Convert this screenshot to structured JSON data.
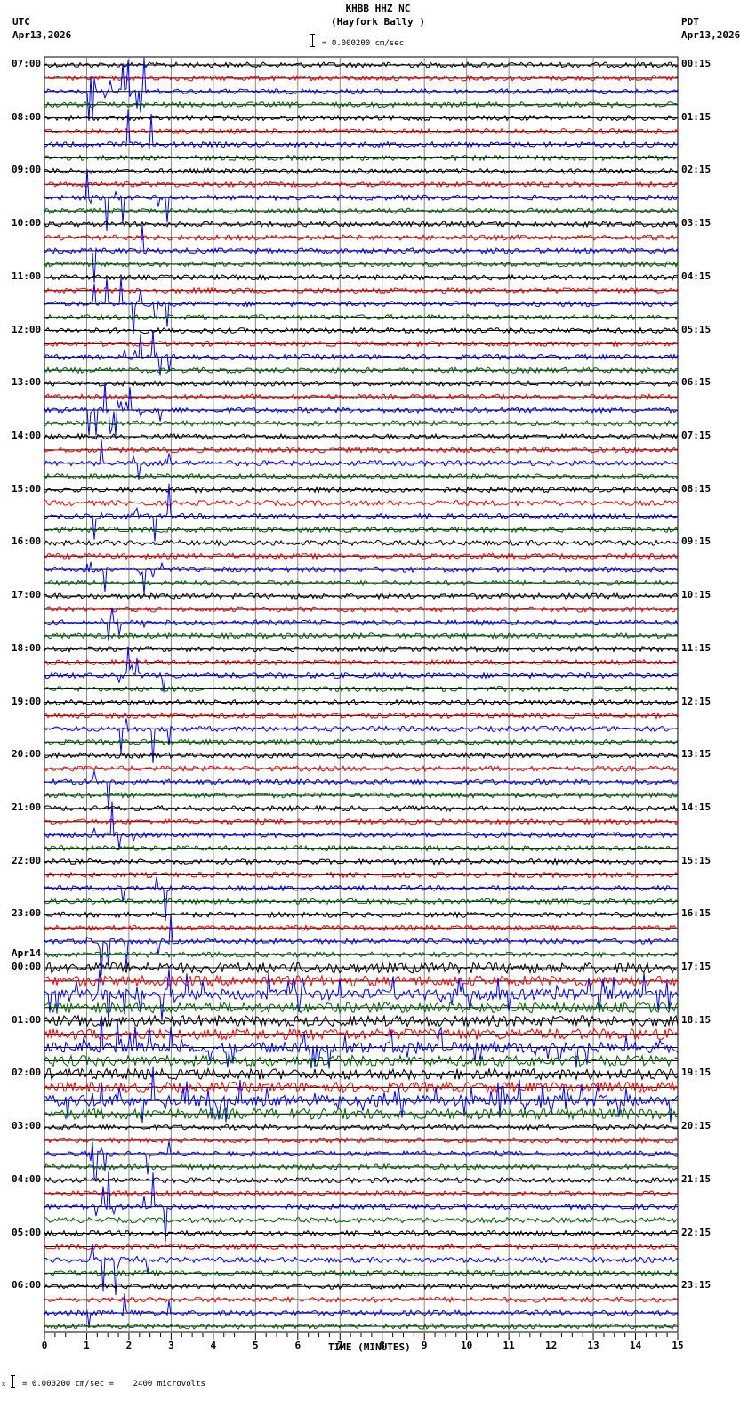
{
  "header": {
    "station": "KHBB HHZ NC",
    "location": "(Hayfork Bally )",
    "left_tz": "UTC",
    "left_date": "Apr13,2026",
    "right_tz": "PDT",
    "right_date": "Apr13,2026",
    "scale_text": "= 0.000200 cm/sec"
  },
  "footer": {
    "scale_text": "= 0.000200 cm/sec =    2400 microvolts",
    "marker": "x"
  },
  "chart_data": {
    "type": "line",
    "title": "KHBB HHZ NC (Hayfork Bally )",
    "xlabel": "TIME (MINUTES)",
    "ylabel": "",
    "x_ticks": [
      "0",
      "1",
      "2",
      "3",
      "4",
      "5",
      "6",
      "7",
      "8",
      "9",
      "10",
      "11",
      "12",
      "13",
      "14",
      "15"
    ],
    "xlim": [
      0,
      15
    ],
    "grid": true,
    "traces_per_hour": 4,
    "trace_colors": [
      "#000000",
      "#ff0000",
      "#0000ff",
      "#006400"
    ],
    "left_hour_labels": [
      "07:00",
      "08:00",
      "09:00",
      "10:00",
      "11:00",
      "12:00",
      "13:00",
      "14:00",
      "15:00",
      "16:00",
      "17:00",
      "18:00",
      "19:00",
      "20:00",
      "21:00",
      "22:00",
      "23:00",
      "00:00",
      "01:00",
      "02:00",
      "03:00",
      "04:00",
      "05:00",
      "06:00"
    ],
    "date_change_label": {
      "text": "Apr14",
      "row": 17
    },
    "right_hour_labels": [
      "00:15",
      "01:15",
      "02:15",
      "03:15",
      "04:15",
      "05:15",
      "06:15",
      "07:15",
      "08:15",
      "09:15",
      "10:15",
      "11:15",
      "12:15",
      "13:15",
      "14:15",
      "15:15",
      "16:15",
      "17:15",
      "18:15",
      "19:15",
      "20:15",
      "21:15",
      "22:15",
      "23:15"
    ],
    "notable_events": [
      {
        "description": "large blue-trace spikes (clipping) in minutes 1-3 spanning most of the day",
        "x_range": [
          1,
          3
        ]
      },
      {
        "description": "dense high-amplitude activity around 00:00-03:00 UTC Apr14",
        "hours": [
          "00:00",
          "01:00",
          "02:00"
        ]
      }
    ]
  }
}
